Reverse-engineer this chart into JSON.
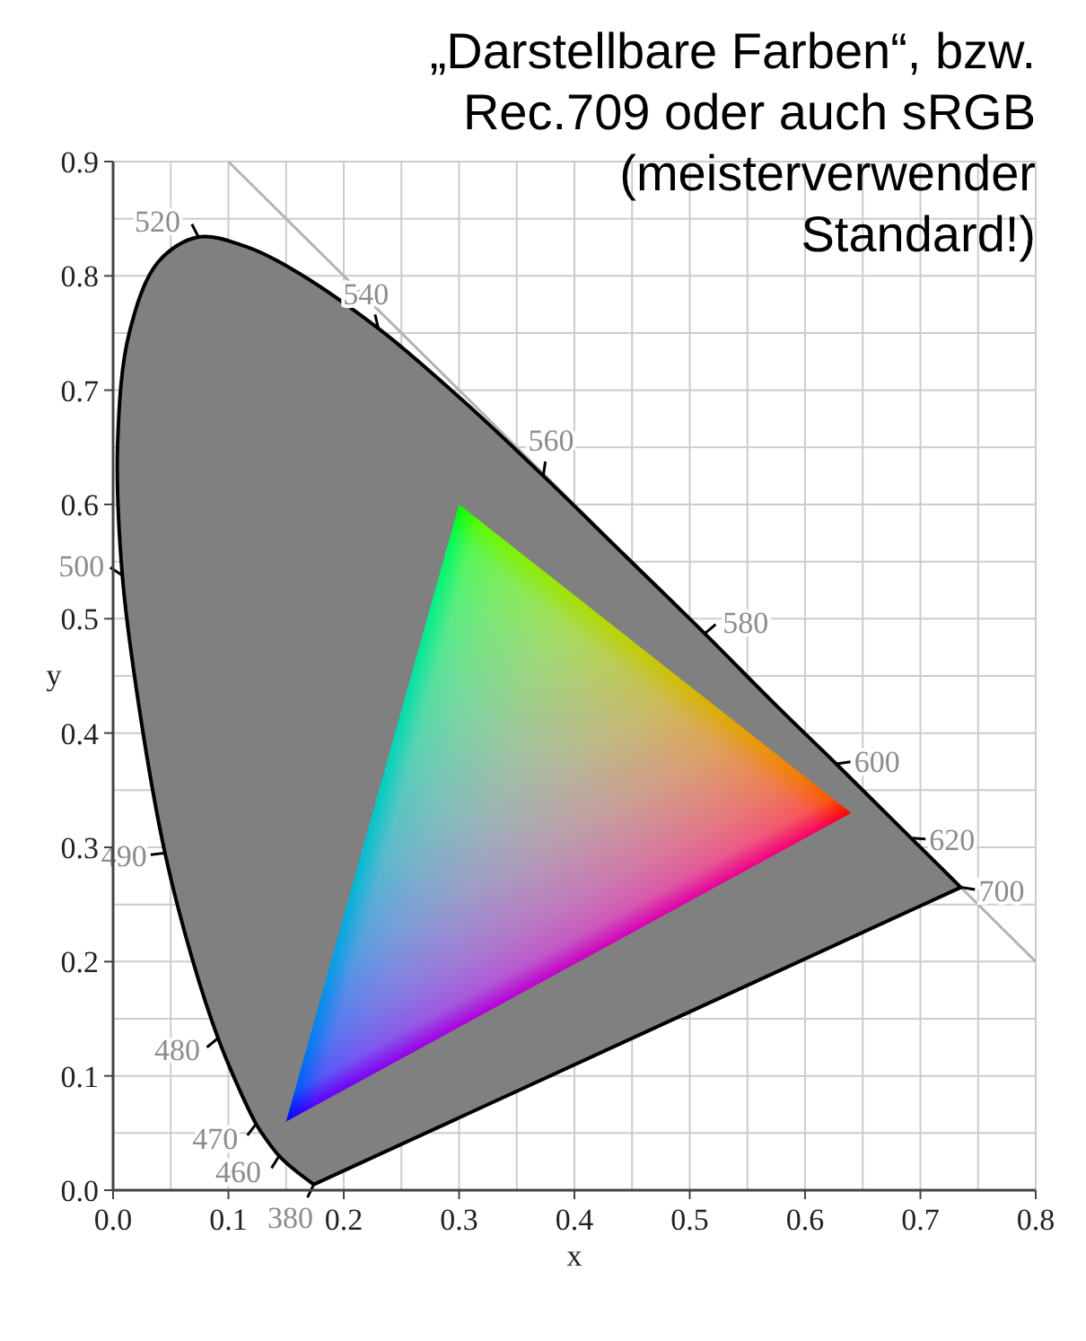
{
  "chart_data": {
    "type": "area",
    "title": "„Darstellbare Farben“, bzw.\nRec.709 oder auch sRGB\n(meisterverwender\nStandard!)",
    "xlabel": "x",
    "ylabel": "y",
    "xlim": [
      0,
      0.8
    ],
    "ylim": [
      0,
      0.9
    ],
    "xticks": [
      {
        "value": 0,
        "label": "0.0"
      },
      {
        "value": 0.05,
        "label": null
      },
      0.1,
      {
        "value": 0.15,
        "label": null
      },
      0.2,
      {
        "value": 0.25,
        "label": null
      },
      0.3,
      {
        "value": 0.35,
        "label": null
      },
      0.4,
      {
        "value": 0.45,
        "label": null
      },
      0.5,
      {
        "value": 0.55,
        "label": null
      },
      0.6,
      {
        "value": 0.65,
        "label": null
      },
      0.7,
      {
        "value": 0.75,
        "label": null
      },
      0.8
    ],
    "yticks": [
      {
        "value": 0,
        "label": "0.0"
      },
      {
        "value": 0.05,
        "label": null
      },
      0.1,
      {
        "value": 0.15,
        "label": null
      },
      0.2,
      {
        "value": 0.25,
        "label": null
      },
      0.3,
      {
        "value": 0.35,
        "label": null
      },
      0.4,
      {
        "value": 0.45,
        "label": null
      },
      0.5,
      {
        "value": 0.55,
        "label": null
      },
      0.6,
      {
        "value": 0.65,
        "label": null
      },
      0.7,
      {
        "value": 0.75,
        "label": null
      },
      0.8,
      {
        "value": 0.85,
        "label": null
      },
      0.9
    ],
    "grid": true,
    "series": [
      {
        "color": "#808080",
        "x": [
          0.174,
          0.157,
          0.144,
          0.136,
          0.124,
          0.11,
          0.091,
          0.069,
          0.045,
          0.024,
          0.008,
          0.004,
          0.014,
          0.039,
          0.074,
          0.114,
          0.155,
          0.23,
          0.302,
          0.373,
          0.444,
          0.513,
          0.575,
          0.627,
          0.666,
          0.692,
          0.719,
          0.735
        ],
        "values": [
          0.005,
          0.018,
          0.03,
          0.04,
          0.058,
          0.087,
          0.133,
          0.201,
          0.295,
          0.413,
          0.538,
          0.655,
          0.75,
          0.812,
          0.834,
          0.826,
          0.806,
          0.754,
          0.692,
          0.625,
          0.555,
          0.487,
          0.424,
          0.373,
          0.334,
          0.308,
          0.281,
          0.265
        ]
      },
      {
        "colors": [
          "#ff0000",
          "#00ff00",
          "#0000ff"
        ],
        "x": [
          0.64,
          0.3,
          0.15
        ],
        "values": [
          0.33,
          0.6,
          0.06
        ]
      },
      {
        "type": "line",
        "color": "#b4b4b4",
        "x": [
          0.1,
          0.8
        ],
        "values": [
          0.9,
          0.2
        ]
      }
    ],
    "annotations": [
      {
        "text": "380",
        "x": 0.174,
        "y": 0.005
      },
      {
        "text": "460",
        "x": 0.144,
        "y": 0.03
      },
      {
        "text": "470",
        "x": 0.124,
        "y": 0.058
      },
      {
        "text": "480",
        "x": 0.091,
        "y": 0.133
      },
      {
        "text": "490",
        "x": 0.045,
        "y": 0.295
      },
      {
        "text": "500",
        "x": 0.008,
        "y": 0.538
      },
      {
        "text": "520",
        "x": 0.074,
        "y": 0.834
      },
      {
        "text": "540",
        "x": 0.23,
        "y": 0.754
      },
      {
        "text": "560",
        "x": 0.373,
        "y": 0.625
      },
      {
        "text": "580",
        "x": 0.513,
        "y": 0.487
      },
      {
        "text": "600",
        "x": 0.627,
        "y": 0.373
      },
      {
        "text": "620",
        "x": 0.692,
        "y": 0.308
      },
      {
        "text": "700",
        "x": 0.735,
        "y": 0.265
      }
    ]
  }
}
